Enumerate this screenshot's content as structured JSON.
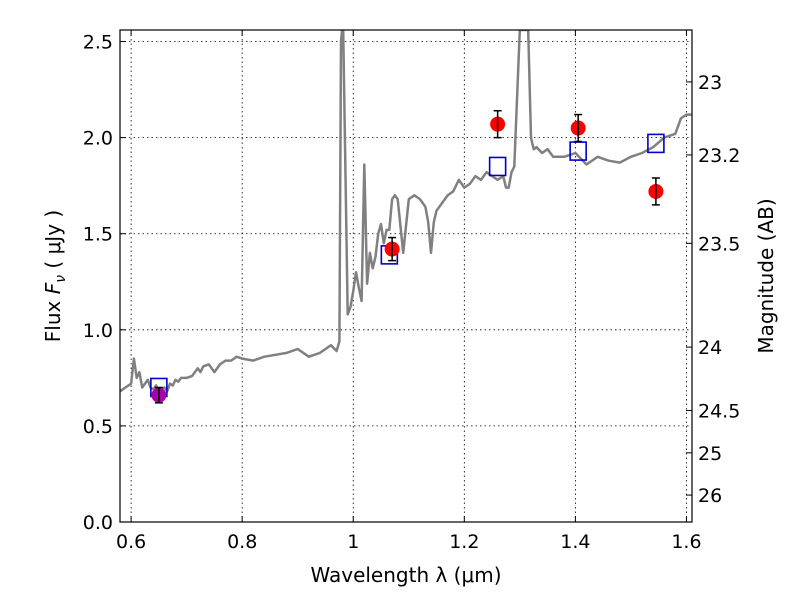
{
  "chart_data": {
    "type": "line",
    "xlabel": "Wavelength  λ (μm)",
    "ylabel_prefix": "Flux  ",
    "ylabel_symbol": "F",
    "ylabel_subscript": "ν",
    "ylabel_suffix": "  ( μJy )",
    "y2label": "Magnitude (AB)",
    "xlim": [
      0.58,
      1.61
    ],
    "ylim": [
      0.0,
      2.56
    ],
    "x_ticks": [
      0.6,
      0.8,
      1.0,
      1.2,
      1.4,
      1.6
    ],
    "x_tick_labels": [
      "0.6",
      "0.8",
      "1",
      "1.2",
      "1.4",
      "1.6"
    ],
    "y_ticks": [
      0.0,
      0.5,
      1.0,
      1.5,
      2.0,
      2.5
    ],
    "y_tick_labels": [
      "0.0",
      "0.5",
      "1.0",
      "1.5",
      "2.0",
      "2.5"
    ],
    "y2_ticks": [
      {
        "label": "23",
        "flux": 2.29
      },
      {
        "label": "23.2",
        "flux": 1.91
      },
      {
        "label": "23.5",
        "flux": 1.45
      },
      {
        "label": "24",
        "flux": 0.91
      },
      {
        "label": "24.5",
        "flux": 0.58
      },
      {
        "label": "25",
        "flux": 0.36
      },
      {
        "label": "26",
        "flux": 0.14
      }
    ],
    "grid": true,
    "colors": {
      "model": "#808080",
      "photometry": "#ff0000",
      "synthetic": "#0000cc",
      "uv_point": "#aa00aa"
    },
    "series": [
      {
        "style": "line",
        "x": [
          0.58,
          0.6,
          0.605,
          0.61,
          0.615,
          0.62,
          0.625,
          0.63,
          0.635,
          0.64,
          0.645,
          0.65,
          0.655,
          0.66,
          0.665,
          0.67,
          0.675,
          0.68,
          0.685,
          0.69,
          0.7,
          0.71,
          0.72,
          0.725,
          0.73,
          0.74,
          0.75,
          0.76,
          0.77,
          0.78,
          0.79,
          0.8,
          0.82,
          0.84,
          0.86,
          0.88,
          0.9,
          0.92,
          0.94,
          0.96,
          0.97,
          0.975,
          0.978,
          0.98,
          0.982,
          0.985,
          0.99,
          0.995,
          1.0,
          1.005,
          1.01,
          1.015,
          1.02,
          1.025,
          1.03,
          1.035,
          1.04,
          1.045,
          1.05,
          1.055,
          1.06,
          1.065,
          1.07,
          1.075,
          1.08,
          1.09,
          1.1,
          1.11,
          1.12,
          1.13,
          1.135,
          1.14,
          1.145,
          1.15,
          1.16,
          1.17,
          1.18,
          1.19,
          1.2,
          1.21,
          1.22,
          1.23,
          1.24,
          1.25,
          1.26,
          1.27,
          1.275,
          1.28,
          1.285,
          1.29,
          1.3,
          1.305,
          1.31,
          1.315,
          1.32,
          1.325,
          1.33,
          1.34,
          1.35,
          1.36,
          1.38,
          1.4,
          1.42,
          1.44,
          1.46,
          1.48,
          1.5,
          1.52,
          1.54,
          1.56,
          1.58,
          1.59,
          1.6,
          1.61
        ],
        "y": [
          0.68,
          0.72,
          0.85,
          0.75,
          0.78,
          0.7,
          0.72,
          0.74,
          0.7,
          0.69,
          0.71,
          0.67,
          0.69,
          0.7,
          0.68,
          0.72,
          0.71,
          0.74,
          0.73,
          0.75,
          0.75,
          0.76,
          0.8,
          0.78,
          0.81,
          0.82,
          0.78,
          0.82,
          0.84,
          0.84,
          0.86,
          0.85,
          0.84,
          0.86,
          0.87,
          0.88,
          0.9,
          0.86,
          0.88,
          0.92,
          0.89,
          0.94,
          2.5,
          2.56,
          2.56,
          2.0,
          1.08,
          1.12,
          1.2,
          1.3,
          1.22,
          1.15,
          1.86,
          1.24,
          1.4,
          1.32,
          1.38,
          1.5,
          1.55,
          1.45,
          1.52,
          1.52,
          1.68,
          1.7,
          1.68,
          1.4,
          1.68,
          1.7,
          1.68,
          1.64,
          1.56,
          1.4,
          1.56,
          1.62,
          1.66,
          1.7,
          1.72,
          1.78,
          1.74,
          1.76,
          1.8,
          1.78,
          1.82,
          1.8,
          1.78,
          1.8,
          1.74,
          1.74,
          1.82,
          1.85,
          2.56,
          2.56,
          2.56,
          2.56,
          2.0,
          1.94,
          1.95,
          1.92,
          1.94,
          1.9,
          1.9,
          1.92,
          1.86,
          1.9,
          1.88,
          1.87,
          1.9,
          1.92,
          1.95,
          2.0,
          2.02,
          2.1,
          2.12,
          2.12
        ]
      },
      {
        "style": "square",
        "x": [
          0.65,
          1.065,
          1.26,
          1.405,
          1.545
        ],
        "y": [
          0.7,
          1.39,
          1.85,
          1.93,
          1.97
        ]
      },
      {
        "style": "errorbar",
        "x": [
          1.07,
          1.26,
          1.405,
          1.545
        ],
        "y": [
          1.42,
          2.07,
          2.05,
          1.72
        ],
        "err": [
          0.06,
          0.07,
          0.07,
          0.07
        ]
      },
      {
        "style": "errorbar",
        "x": [
          0.65
        ],
        "y": [
          0.66
        ],
        "err": [
          0.04
        ]
      }
    ]
  }
}
